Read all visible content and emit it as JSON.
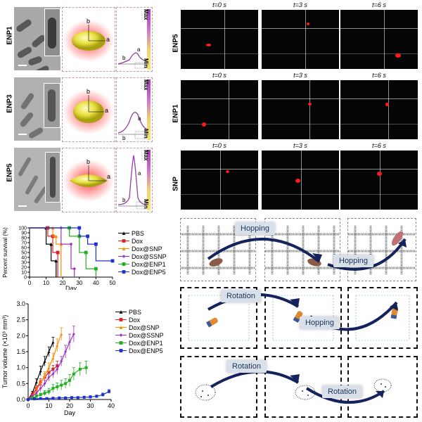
{
  "tem_rows": [
    {
      "label": "ENP1"
    },
    {
      "label": "ENP3"
    },
    {
      "label": "ENP5"
    }
  ],
  "axis_letters": {
    "a": "a",
    "b": "b"
  },
  "profile_labels": {
    "max": "Max",
    "min": "Min"
  },
  "micro_rows": [
    {
      "label": "ENP5",
      "times": [
        "t=0 s",
        "t=3 s",
        "t=6 s"
      ]
    },
    {
      "label": "ENP1",
      "times": [
        "t=0 s",
        "t=3 s",
        "t=6 s"
      ]
    },
    {
      "label": "SNP",
      "times": [
        "t=0 s",
        "t=3 s",
        "t=6 s"
      ]
    }
  ],
  "sim_labels": {
    "hopping": "Hopping",
    "rotation": "Rotation"
  },
  "chart_data": [
    {
      "type": "line",
      "subtype": "kaplan-meier",
      "xlabel": "Day",
      "ylabel": "Percent survival (%)",
      "xlim": [
        0,
        50
      ],
      "ylim": [
        0,
        100
      ],
      "xticks": [
        "0",
        "10",
        "20",
        "30",
        "40",
        "50"
      ],
      "yticks": [
        "0",
        "10",
        "20",
        "30",
        "40",
        "50",
        "60",
        "70",
        "80",
        "90",
        "100"
      ],
      "series": [
        {
          "name": "PBS",
          "color": "#000000",
          "marker": "triangle",
          "steps": [
            [
              0,
              100
            ],
            [
              10,
              100
            ],
            [
              10,
              67
            ],
            [
              13,
              67
            ],
            [
              13,
              33
            ],
            [
              16,
              33
            ],
            [
              16,
              0
            ]
          ]
        },
        {
          "name": "Dox",
          "color": "#e02020",
          "marker": "square",
          "steps": [
            [
              0,
              100
            ],
            [
              11,
              100
            ],
            [
              11,
              83
            ],
            [
              14,
              83
            ],
            [
              14,
              50
            ],
            [
              17,
              50
            ],
            [
              17,
              0
            ]
          ]
        },
        {
          "name": "Dox@SNP",
          "color": "#ff8c00",
          "marker": "triangle",
          "steps": [
            [
              0,
              100
            ],
            [
              14,
              100
            ],
            [
              14,
              83
            ],
            [
              16,
              83
            ],
            [
              16,
              67
            ],
            [
              19,
              67
            ],
            [
              19,
              0
            ]
          ]
        },
        {
          "name": "Dox@SSNP",
          "color": "#a030c0",
          "marker": "diamond",
          "steps": [
            [
              0,
              100
            ],
            [
              19,
              100
            ],
            [
              19,
              67
            ],
            [
              25,
              67
            ],
            [
              25,
              17
            ],
            [
              27,
              17
            ],
            [
              27,
              0
            ]
          ]
        },
        {
          "name": "Dox@ENP1",
          "color": "#20b020",
          "marker": "square",
          "steps": [
            [
              0,
              100
            ],
            [
              24,
              100
            ],
            [
              24,
              83
            ],
            [
              30,
              83
            ],
            [
              30,
              50
            ],
            [
              34,
              50
            ],
            [
              34,
              17
            ],
            [
              40,
              17
            ],
            [
              40,
              0
            ]
          ]
        },
        {
          "name": "Dox@ENP5",
          "color": "#1c2fd0",
          "marker": "square",
          "steps": [
            [
              0,
              100
            ],
            [
              30,
              100
            ],
            [
              30,
              83
            ],
            [
              35,
              83
            ],
            [
              35,
              67
            ],
            [
              40,
              67
            ],
            [
              40,
              33
            ],
            [
              50,
              33
            ]
          ]
        }
      ]
    },
    {
      "type": "line",
      "xlabel": "Day",
      "ylabel": "Tumor volume (×10³ mm³)",
      "xlim": [
        0,
        40
      ],
      "ylim": [
        0,
        3.0
      ],
      "xticks": [
        "0",
        "10",
        "20",
        "30",
        "40"
      ],
      "yticks": [
        "0.0",
        "0.5",
        "1.0",
        "1.5",
        "2.0",
        "2.5",
        "3.0"
      ],
      "series": [
        {
          "name": "PBS",
          "color": "#000000",
          "x": [
            0,
            2,
            4,
            6,
            8,
            10,
            12
          ],
          "y": [
            0.0,
            0.2,
            0.55,
            0.9,
            1.2,
            1.5,
            1.8
          ],
          "err": [
            0,
            0.05,
            0.1,
            0.15,
            0.15,
            0.15,
            0.15
          ]
        },
        {
          "name": "Dox",
          "color": "#e02020",
          "x": [
            0,
            2,
            4,
            6,
            8,
            10,
            12,
            14
          ],
          "y": [
            0.0,
            0.15,
            0.35,
            0.55,
            0.7,
            0.85,
            0.95,
            1.05
          ],
          "err": [
            0,
            0.05,
            0.08,
            0.1,
            0.1,
            0.12,
            0.12,
            0.15
          ]
        },
        {
          "name": "Dox@SNP",
          "color": "#ff8c00",
          "x": [
            0,
            2,
            4,
            6,
            8,
            10,
            12,
            14,
            16
          ],
          "y": [
            0.0,
            0.1,
            0.3,
            0.5,
            0.75,
            1.0,
            1.3,
            1.7,
            2.05
          ],
          "err": [
            0,
            0.05,
            0.08,
            0.1,
            0.12,
            0.15,
            0.15,
            0.2,
            0.2
          ]
        },
        {
          "name": "Dox@SSNP",
          "color": "#a030c0",
          "x": [
            0,
            2,
            4,
            6,
            8,
            10,
            12,
            14,
            16,
            18,
            20,
            22
          ],
          "y": [
            0.0,
            0.1,
            0.2,
            0.35,
            0.5,
            0.7,
            0.8,
            0.95,
            1.2,
            1.5,
            1.8,
            2.05
          ],
          "err": [
            0,
            0.05,
            0.08,
            0.1,
            0.1,
            0.12,
            0.12,
            0.15,
            0.15,
            0.2,
            0.25,
            0.25
          ]
        },
        {
          "name": "Dox@ENP1",
          "color": "#20b020",
          "x": [
            0,
            2,
            4,
            6,
            8,
            10,
            12,
            14,
            16,
            18,
            20,
            22,
            25,
            28
          ],
          "y": [
            0.0,
            0.05,
            0.1,
            0.15,
            0.2,
            0.25,
            0.35,
            0.4,
            0.45,
            0.5,
            0.6,
            0.8,
            0.95,
            1.0
          ],
          "err": [
            0,
            0.03,
            0.05,
            0.05,
            0.08,
            0.1,
            0.12,
            0.12,
            0.15,
            0.15,
            0.18,
            0.2,
            0.2,
            0.2
          ]
        },
        {
          "name": "Dox@ENP5",
          "color": "#1c2fd0",
          "x": [
            0,
            3,
            6,
            9,
            12,
            15,
            18,
            21,
            24,
            27,
            30,
            33,
            36,
            39
          ],
          "y": [
            0.0,
            0.02,
            0.03,
            0.03,
            0.04,
            0.05,
            0.05,
            0.06,
            0.06,
            0.07,
            0.08,
            0.1,
            0.15,
            0.25
          ],
          "err": [
            0,
            0.01,
            0.01,
            0.02,
            0.02,
            0.02,
            0.03,
            0.03,
            0.03,
            0.03,
            0.04,
            0.04,
            0.05,
            0.06
          ]
        }
      ]
    }
  ]
}
